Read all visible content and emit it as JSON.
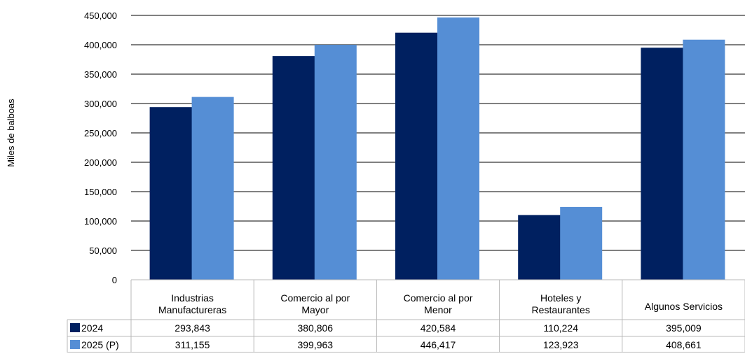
{
  "chart_data": {
    "type": "bar",
    "ylabel": "Miles de balboas",
    "ylim": [
      0,
      450000
    ],
    "yticks": [
      0,
      50000,
      100000,
      150000,
      200000,
      250000,
      300000,
      350000,
      400000,
      450000
    ],
    "ytick_labels": [
      "0",
      "50,000",
      "100,000",
      "150,000",
      "200,000",
      "250,000",
      "300,000",
      "350,000",
      "400,000",
      "450,000"
    ],
    "categories": [
      [
        "Industrias",
        "Manufactureras"
      ],
      [
        "Comercio al por",
        "Mayor"
      ],
      [
        "Comercio al por",
        "Menor"
      ],
      [
        "Hoteles y",
        "Restaurantes"
      ],
      [
        "Algunos Servicios"
      ]
    ],
    "series": [
      {
        "name": "2024",
        "color": "#002060",
        "values": [
          293843,
          380806,
          420584,
          110224,
          395009
        ],
        "labels": [
          "293,843",
          "380,806",
          "420,584",
          "110,224",
          "395,009"
        ]
      },
      {
        "name": "2025 (P)",
        "color": "#558ed5",
        "values": [
          311155,
          399963,
          446417,
          123923,
          408661
        ],
        "labels": [
          "311,155",
          "399,963",
          "446,417",
          "123,923",
          "408,661"
        ]
      }
    ],
    "grid": true,
    "legend": "data-table"
  }
}
